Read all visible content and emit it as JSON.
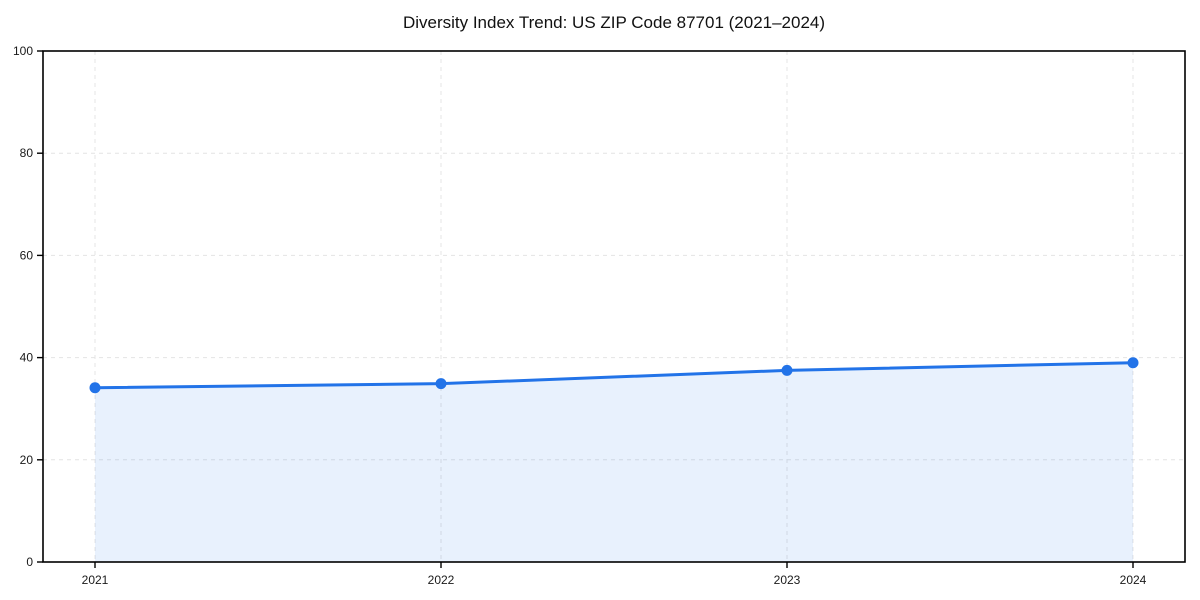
{
  "chart_data": {
    "type": "area",
    "title": "Diversity Index Trend: US ZIP Code 87701 (2021–2024)",
    "categories": [
      "2021",
      "2022",
      "2023",
      "2024"
    ],
    "values": [
      34.1,
      34.9,
      37.5,
      39.0
    ],
    "xlabel": "",
    "ylabel": "",
    "ylim": [
      0,
      100
    ],
    "yticks": [
      0,
      20,
      40,
      60,
      80,
      100
    ],
    "grid": "dashed both axes",
    "legend_position": "none",
    "line_color": "#2273e8",
    "marker_color": "#2273e8",
    "fill_color": "rgba(34, 115, 232, 0.10)",
    "axis_color": "#000000",
    "grid_color": "#e4e4e4",
    "tick_label_color": "#1a1a1a",
    "background_color": "#ffffff"
  }
}
